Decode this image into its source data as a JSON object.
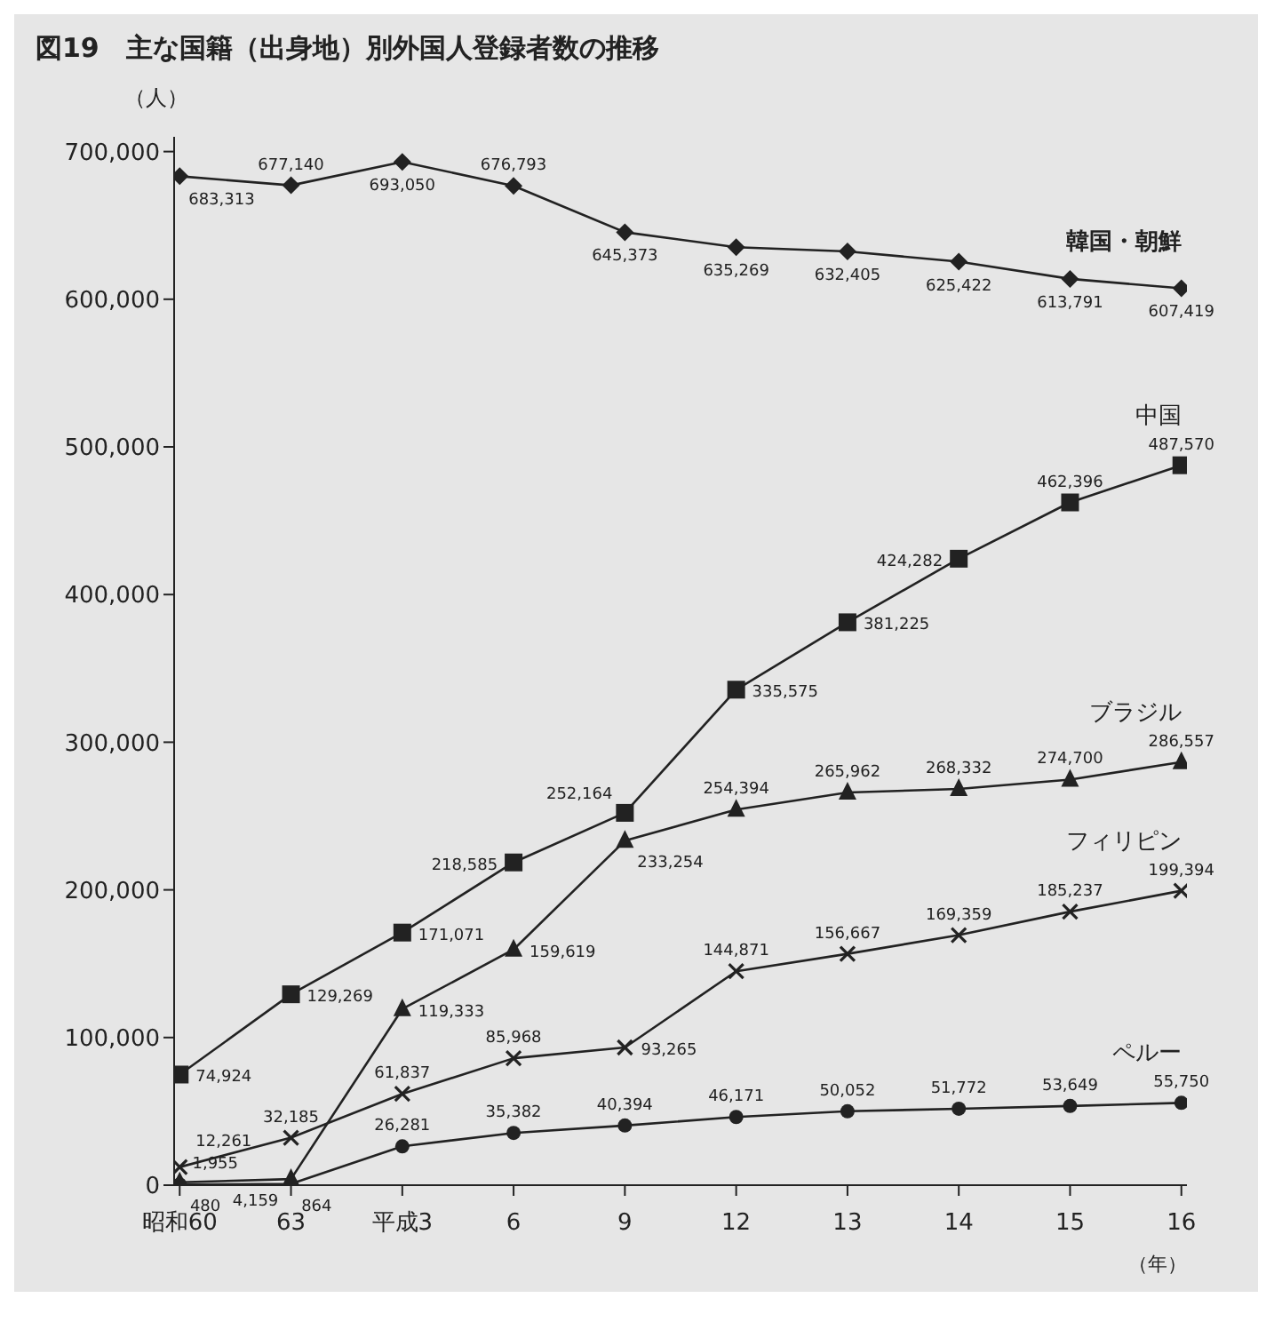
{
  "chart_data": {
    "type": "line",
    "title": "図19　主な国籍（出身地）別外国人登録者数の推移",
    "ylabel": "（人）",
    "xlabel": "（年）",
    "categories": [
      "昭和60",
      "63",
      "平成3",
      "6",
      "9",
      "12",
      "13",
      "14",
      "15",
      "16"
    ],
    "series": [
      {
        "name": "韓国・朝鮮",
        "color": "#222222",
        "marker": "diamond",
        "values": [
          683313,
          677140,
          693050,
          676793,
          645373,
          635269,
          632405,
          625422,
          613791,
          607419
        ],
        "value_labels": [
          "683,313",
          "677,140",
          "693,050",
          "676,793",
          "645,373",
          "635,269",
          "632,405",
          "625,422",
          "613,791",
          "607,419"
        ]
      },
      {
        "name": "中国",
        "color": "#222222",
        "marker": "square",
        "values": [
          74924,
          129269,
          171071,
          218585,
          252164,
          335575,
          381225,
          424282,
          462396,
          487570
        ],
        "value_labels": [
          "74,924",
          "129,269",
          "171,071",
          "218,585",
          "252,164",
          "335,575",
          "381,225",
          "424,282",
          "462,396",
          "487,570"
        ]
      },
      {
        "name": "ブラジル",
        "color": "#222222",
        "marker": "triangle",
        "values": [
          1955,
          4159,
          119333,
          159619,
          233254,
          254394,
          265962,
          268332,
          274700,
          286557
        ],
        "value_labels": [
          "1,955",
          "4,159",
          "119,333",
          "159,619",
          "233,254",
          "254,394",
          "265,962",
          "268,332",
          "274,700",
          "286,557"
        ]
      },
      {
        "name": "フィリピン",
        "color": "#222222",
        "marker": "cross",
        "values": [
          12261,
          32185,
          61837,
          85968,
          93265,
          144871,
          156667,
          169359,
          185237,
          199394
        ],
        "value_labels": [
          "12,261",
          "32,185",
          "61,837",
          "85,968",
          "93,265",
          "144,871",
          "156,667",
          "169,359",
          "185,237",
          "199,394"
        ]
      },
      {
        "name": "ペルー",
        "color": "#222222",
        "marker": "circle",
        "values": [
          480,
          864,
          26281,
          35382,
          40394,
          46171,
          50052,
          51772,
          53649,
          55750
        ],
        "value_labels": [
          "480",
          "864",
          "26,281",
          "35,382",
          "40,394",
          "46,171",
          "50,052",
          "51,772",
          "53,649",
          "55,750"
        ]
      }
    ],
    "ylim": [
      0,
      710000
    ],
    "yticks": [
      0,
      {
        "value": 100000,
        "label": "100,000"
      },
      {
        "value": 200000,
        "label": "200,000"
      },
      {
        "value": 300000,
        "label": "300,000"
      },
      {
        "value": 400000,
        "label": "400,000"
      },
      {
        "value": 500000,
        "label": "500,000"
      },
      {
        "value": 600000,
        "label": "600,000"
      },
      {
        "value": 700000,
        "label": "700,000"
      }
    ],
    "grid": false,
    "legend": false
  }
}
